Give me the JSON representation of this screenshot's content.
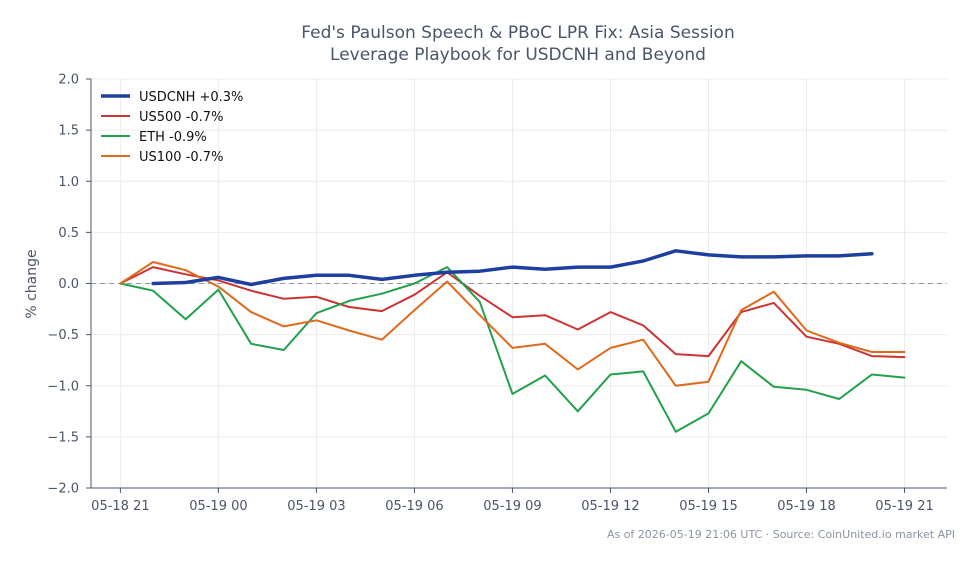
{
  "title_lines": [
    "Fed's Paulson Speech & PBoC LPR Fix: Asia Session",
    "Leverage Playbook for USDCNH and Beyond"
  ],
  "footer": "As of 2026-05-19 21:06 UTC · Source: CoinUnited.io market API",
  "chart_data": {
    "type": "line",
    "ylabel": "% change",
    "ylim": [
      -2.0,
      2.0
    ],
    "yticks": [
      2.0,
      1.5,
      1.0,
      0.5,
      0.0,
      -0.5,
      -1.0,
      -1.5,
      -2.0
    ],
    "ytick_labels": [
      "2.0",
      "1.5",
      "1.0",
      "0.5",
      "0.0",
      "−0.5",
      "−1.0",
      "−1.5",
      "−2.0"
    ],
    "xlim_hours": [
      -0.9,
      25.3
    ],
    "xticks_hours": [
      0,
      3,
      6,
      9,
      12,
      15,
      18,
      21,
      24
    ],
    "xtick_labels": [
      "05-18 21",
      "05-19 00",
      "05-19 03",
      "05-19 06",
      "05-19 09",
      "05-19 12",
      "05-19 15",
      "05-19 18",
      "05-19 21"
    ],
    "x_hours_start": 0,
    "grid": true,
    "baseline": 0.0,
    "legend_position": "top-left",
    "series": [
      {
        "name": "USDCNH +0.3%",
        "color": "#1f3fa0",
        "width": 3.5,
        "x_start": 1,
        "values": [
          0.0,
          0.01,
          0.06,
          -0.01,
          0.05,
          0.08,
          0.08,
          0.04,
          0.08,
          0.11,
          0.12,
          0.16,
          0.14,
          0.16,
          0.16,
          0.22,
          0.32,
          0.28,
          0.26,
          0.26,
          0.27,
          0.27,
          0.29
        ]
      },
      {
        "name": "US500 -0.7%",
        "color": "#cc3333",
        "width": 2,
        "x_start": 0,
        "values": [
          0.0,
          0.16,
          0.09,
          0.03,
          -0.07,
          -0.15,
          -0.13,
          -0.23,
          -0.27,
          -0.11,
          0.11,
          -0.12,
          -0.33,
          -0.31,
          -0.45,
          -0.28,
          -0.41,
          -0.69,
          -0.71,
          -0.28,
          -0.19,
          -0.52,
          -0.59,
          -0.71,
          -0.72
        ]
      },
      {
        "name": "ETH -0.9%",
        "color": "#22a04b",
        "width": 2,
        "x_start": 0,
        "values": [
          0.0,
          -0.07,
          -0.35,
          -0.06,
          -0.59,
          -0.65,
          -0.29,
          -0.17,
          -0.1,
          0.0,
          0.16,
          -0.18,
          -1.08,
          -0.9,
          -1.25,
          -0.89,
          -0.86,
          -1.45,
          -1.27,
          -0.76,
          -1.01,
          -1.04,
          -1.13,
          -0.89,
          -0.92
        ]
      },
      {
        "name": "US100 -0.7%",
        "color": "#e06a1c",
        "width": 2,
        "x_start": 0,
        "values": [
          0.0,
          0.21,
          0.13,
          -0.03,
          -0.28,
          -0.42,
          -0.36,
          -0.46,
          -0.55,
          -0.26,
          0.02,
          -0.31,
          -0.63,
          -0.59,
          -0.84,
          -0.63,
          -0.55,
          -1.0,
          -0.96,
          -0.26,
          -0.08,
          -0.46,
          -0.58,
          -0.67,
          -0.67
        ]
      }
    ]
  }
}
